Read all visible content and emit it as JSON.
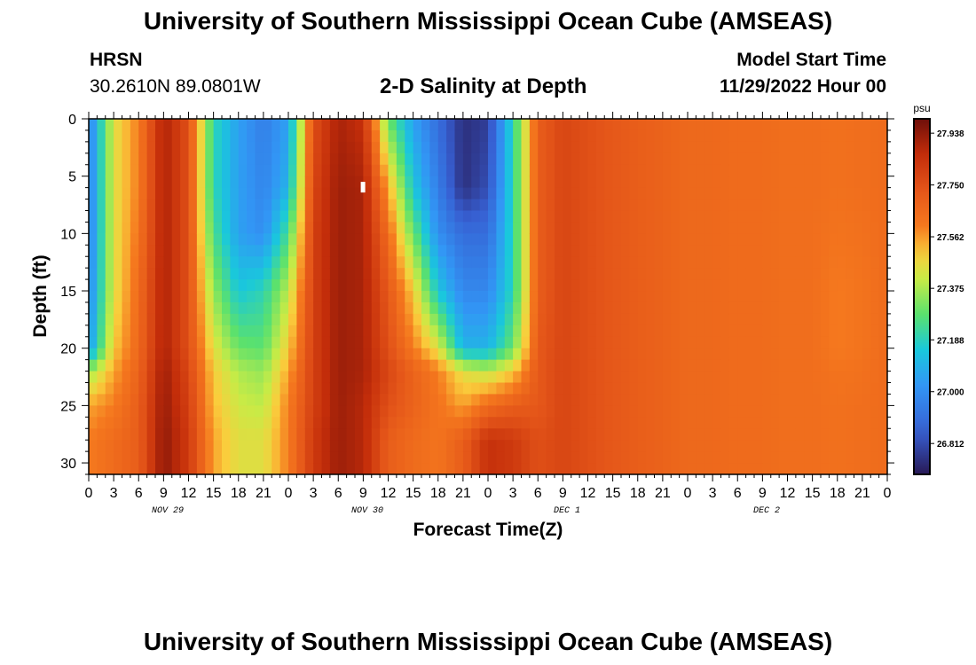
{
  "header": {
    "title": "University of Southern Mississippi Ocean Cube (AMSEAS)",
    "station": "HRSN",
    "coordinates": "30.2610N  89.0801W",
    "plot_title": "2-D Salinity at Depth",
    "model_start_label": "Model Start Time",
    "model_start_value": "11/29/2022 Hour 00"
  },
  "footer": {
    "title": "University of Southern Mississippi Ocean Cube (AMSEAS)"
  },
  "chart_data": {
    "type": "heatmap",
    "title": "2-D Salinity at Depth",
    "xlabel": "Forecast Time(Z)",
    "ylabel": "Depth (ft)",
    "x_range_hours": [
      0,
      96
    ],
    "y_range_ft": [
      0,
      31
    ],
    "y_inverted": true,
    "x_tick_labels": [
      "0",
      "3",
      "6",
      "9",
      "12",
      "15",
      "18",
      "21",
      "0",
      "3",
      "6",
      "9",
      "12",
      "15",
      "18",
      "21",
      "0",
      "3",
      "6",
      "9",
      "12",
      "15",
      "18",
      "21",
      "0",
      "3",
      "6",
      "9",
      "12",
      "15",
      "18",
      "21",
      "0"
    ],
    "y_ticks": [
      0,
      5,
      10,
      15,
      20,
      25,
      30
    ],
    "day_labels": [
      {
        "label": "NOV 29",
        "hour": 9.5
      },
      {
        "label": "NOV 30",
        "hour": 33.5
      },
      {
        "label": "DEC 1",
        "hour": 57.5
      },
      {
        "label": "DEC 2",
        "hour": 81.5
      }
    ],
    "colorbar": {
      "unit": "psu",
      "min": 26.7,
      "max": 27.99,
      "tick_values": [
        "27.938",
        "27.750",
        "27.562",
        "27.375",
        "27.188",
        "27.000",
        "26.812"
      ]
    },
    "depth_levels_ft": [
      0,
      6,
      10,
      15,
      20,
      22,
      25,
      28,
      31
    ],
    "time_hours": [
      0,
      3,
      6,
      9,
      12,
      15,
      18,
      21,
      24,
      27,
      30,
      33,
      36,
      39,
      42,
      45,
      48,
      51,
      54,
      57,
      60,
      63,
      66,
      69,
      72,
      75,
      78,
      81,
      84,
      87,
      90,
      93,
      96
    ],
    "salinity_psu": [
      [
        26.95,
        26.95,
        26.95,
        26.97,
        27.02,
        27.35,
        27.55,
        27.6,
        27.6
      ],
      [
        27.45,
        27.45,
        27.45,
        27.45,
        27.5,
        27.55,
        27.6,
        27.65,
        27.65
      ],
      [
        27.6,
        27.6,
        27.62,
        27.65,
        27.66,
        27.68,
        27.7,
        27.7,
        27.7
      ],
      [
        27.9,
        27.9,
        27.9,
        27.9,
        27.9,
        27.92,
        27.93,
        27.94,
        27.94
      ],
      [
        27.75,
        27.75,
        27.75,
        27.75,
        27.75,
        27.78,
        27.8,
        27.82,
        27.82
      ],
      [
        27.2,
        27.2,
        27.25,
        27.35,
        27.45,
        27.5,
        27.52,
        27.55,
        27.55
      ],
      [
        27.05,
        27.05,
        27.05,
        27.15,
        27.3,
        27.38,
        27.42,
        27.45,
        27.45
      ],
      [
        26.95,
        26.97,
        27.0,
        27.2,
        27.28,
        27.35,
        27.4,
        27.45,
        27.45
      ],
      [
        27.05,
        27.1,
        27.25,
        27.4,
        27.5,
        27.55,
        27.6,
        27.6,
        27.6
      ],
      [
        27.75,
        27.78,
        27.8,
        27.8,
        27.8,
        27.8,
        27.8,
        27.82,
        27.82
      ],
      [
        27.9,
        27.92,
        27.92,
        27.92,
        27.92,
        27.92,
        27.92,
        27.92,
        27.92
      ],
      [
        27.85,
        27.9,
        27.9,
        27.9,
        27.9,
        27.9,
        27.88,
        27.88,
        27.88
      ],
      [
        27.3,
        27.55,
        27.65,
        27.72,
        27.75,
        27.78,
        27.75,
        27.7,
        27.7
      ],
      [
        27.05,
        27.15,
        27.3,
        27.5,
        27.6,
        27.68,
        27.68,
        27.65,
        27.65
      ],
      [
        26.9,
        26.95,
        27.0,
        27.15,
        27.45,
        27.6,
        27.62,
        27.62,
        27.62
      ],
      [
        26.75,
        26.75,
        26.9,
        26.98,
        27.1,
        27.45,
        27.55,
        27.7,
        27.7
      ],
      [
        26.78,
        26.82,
        26.9,
        26.98,
        27.1,
        27.4,
        27.65,
        27.85,
        27.85
      ],
      [
        27.2,
        27.2,
        27.2,
        27.2,
        27.3,
        27.5,
        27.7,
        27.82,
        27.82
      ],
      [
        27.7,
        27.7,
        27.7,
        27.7,
        27.72,
        27.72,
        27.72,
        27.75,
        27.75
      ],
      [
        27.78,
        27.78,
        27.78,
        27.78,
        27.78,
        27.78,
        27.78,
        27.78,
        27.78
      ],
      [
        27.75,
        27.75,
        27.75,
        27.75,
        27.75,
        27.75,
        27.75,
        27.75,
        27.75
      ],
      [
        27.72,
        27.72,
        27.72,
        27.72,
        27.72,
        27.72,
        27.72,
        27.72,
        27.72
      ],
      [
        27.7,
        27.7,
        27.7,
        27.7,
        27.7,
        27.7,
        27.7,
        27.7,
        27.7
      ],
      [
        27.68,
        27.68,
        27.68,
        27.68,
        27.68,
        27.68,
        27.68,
        27.68,
        27.68
      ],
      [
        27.66,
        27.66,
        27.66,
        27.66,
        27.66,
        27.66,
        27.66,
        27.66,
        27.66
      ],
      [
        27.66,
        27.66,
        27.66,
        27.66,
        27.66,
        27.66,
        27.66,
        27.66,
        27.66
      ],
      [
        27.65,
        27.65,
        27.65,
        27.65,
        27.65,
        27.65,
        27.65,
        27.65,
        27.65
      ],
      [
        27.65,
        27.65,
        27.65,
        27.65,
        27.65,
        27.65,
        27.65,
        27.65,
        27.65
      ],
      [
        27.64,
        27.64,
        27.64,
        27.64,
        27.64,
        27.64,
        27.64,
        27.64,
        27.64
      ],
      [
        27.64,
        27.64,
        27.64,
        27.64,
        27.64,
        27.64,
        27.64,
        27.64,
        27.64
      ],
      [
        27.63,
        27.63,
        27.62,
        27.6,
        27.6,
        27.62,
        27.63,
        27.63,
        27.63
      ],
      [
        27.64,
        27.64,
        27.63,
        27.62,
        27.62,
        27.63,
        27.64,
        27.64,
        27.64
      ],
      [
        27.65,
        27.65,
        27.65,
        27.65,
        27.65,
        27.65,
        27.65,
        27.65,
        27.65
      ]
    ]
  }
}
